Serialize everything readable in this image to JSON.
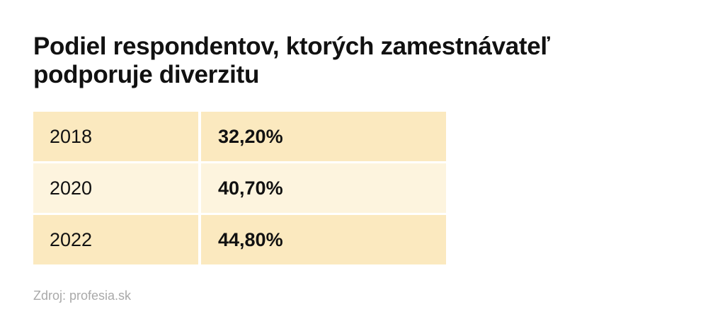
{
  "header": {
    "title": "Podiel respondentov, ktorých zamestnávateľ podporuje diverzitu"
  },
  "table": {
    "rows": [
      [
        "2018",
        "32,20%"
      ],
      [
        "2020",
        "40,70%"
      ],
      [
        "2022",
        "44,80%"
      ]
    ]
  },
  "footer": {
    "source": "Zdroj: profesia.sk"
  }
}
